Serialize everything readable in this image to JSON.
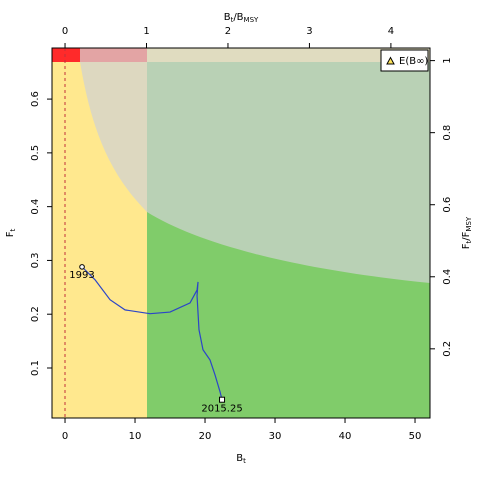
{
  "chart_data": {
    "type": "line",
    "x_label": {
      "main": "B",
      "sub": "t"
    },
    "y_label": {
      "main": "F",
      "sub": "t"
    },
    "x2_label": {
      "main": "B",
      "sub": "t",
      "sep": "/B",
      "sub2": "MSY"
    },
    "y2_label": {
      "main": "F",
      "sub": "t",
      "sep": "/F",
      "sub2": "MSY"
    },
    "xlim": [
      -1.86,
      52.14
    ],
    "xticks": [
      0,
      10,
      20,
      30,
      40,
      50
    ],
    "ylim": [
      0.007,
      0.695
    ],
    "yticks": [
      0.1,
      0.2,
      0.3,
      0.4,
      0.5,
      0.6
    ],
    "x2lim": [
      -0.16,
      4.48
    ],
    "x2ticks": [
      0,
      1,
      2,
      3,
      4
    ],
    "y2lim": [
      0.008,
      1.035
    ],
    "y2ticks": [
      0.2,
      0.4,
      0.6,
      0.8,
      1
    ],
    "series": [
      {
        "color": "#2b45c8",
        "x": [
          2.43,
          4.29,
          6.43,
          8.57,
          12.14,
          15.0,
          17.86,
          18.86,
          19.0,
          18.86,
          19.14,
          19.71,
          20.71,
          21.43,
          22.14,
          22.43
        ],
        "values": [
          0.288,
          0.264,
          0.227,
          0.208,
          0.201,
          0.204,
          0.221,
          0.245,
          0.26,
          0.234,
          0.171,
          0.134,
          0.115,
          0.087,
          0.056,
          0.041
        ]
      }
    ],
    "annotations": [
      "1993",
      "2015.25"
    ],
    "legend": {
      "label": "E(B∞)",
      "position": "top-right"
    }
  }
}
